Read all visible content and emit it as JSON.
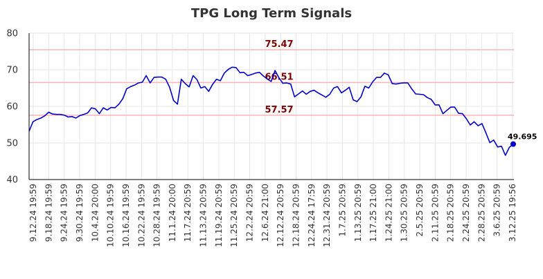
{
  "chart_data": {
    "type": "line",
    "title": "TPG Long Term Signals",
    "xlabel": "",
    "ylabel": "",
    "ylim": [
      40,
      80
    ],
    "yticks": [
      40,
      50,
      60,
      70,
      80
    ],
    "grid": true,
    "x_tick_labels": [
      "9.12.24 19:59",
      "9.18.24 19:59",
      "9.24.24 19:59",
      "9.30.24 19:59",
      "10.4.24 20:00",
      "10.10.24 19:59",
      "10.16.24 19:59",
      "10.22.24 19:59",
      "10.28.24 19:59",
      "11.1.24 20:00",
      "11.7.24 20:59",
      "11.13.24 20:59",
      "11.19.24 20:59",
      "11.25.24 20:59",
      "12.2.24 20:59",
      "12.6.24 21:00",
      "12.12.24 20:59",
      "12.18.24 20:59",
      "12.24.24 17:59",
      "12.31.24 20:59",
      "1.7.25 20:59",
      "1.13.25 20:59",
      "1.17.25 21:00",
      "1.24.25 21:00",
      "1.30.25 20:59",
      "2.5.25 20:59",
      "2.11.25 20:59",
      "2.18.25 20:59",
      "2.24.25 20:59",
      "2.28.25 20:59",
      "3.6.25 20:59",
      "3.12.25 19:56"
    ],
    "reference_lines": [
      {
        "value": 75.47,
        "label": "75.47",
        "color": "#ffb3b3"
      },
      {
        "value": 66.51,
        "label": "66.51",
        "color": "#ffb3b3"
      },
      {
        "value": 57.57,
        "label": "57.57",
        "color": "#ffb3b3"
      }
    ],
    "series": [
      {
        "color": "#0000cc",
        "values": [
          53.2,
          55.8,
          56.4,
          56.8,
          57.4,
          58.4,
          57.9,
          57.8,
          57.8,
          57.6,
          57.1,
          57.2,
          56.8,
          57.5,
          57.8,
          58.2,
          59.6,
          59.3,
          58.0,
          59.6,
          59.0,
          59.7,
          59.6,
          60.6,
          62.1,
          64.8,
          65.4,
          65.8,
          66.4,
          66.6,
          68.4,
          66.4,
          67.9,
          68.0,
          68.0,
          67.4,
          65.2,
          61.6,
          60.6,
          67.4,
          66.2,
          65.3,
          68.4,
          67.3,
          65.0,
          65.4,
          64.1,
          66.0,
          67.4,
          67.0,
          69.1,
          70.1,
          70.7,
          70.6,
          69.2,
          69.3,
          68.4,
          68.7,
          69.1,
          69.3,
          68.3,
          67.5,
          66.8,
          69.8,
          67.8,
          66.3,
          66.4,
          66.1,
          62.6,
          63.4,
          64.2,
          63.3,
          64.1,
          64.4,
          63.7,
          63.1,
          62.5,
          63.3,
          65.0,
          65.4,
          63.7,
          64.4,
          65.2,
          61.8,
          61.3,
          62.6,
          65.5,
          65.0,
          66.7,
          67.9,
          67.9,
          69.1,
          68.6,
          66.2,
          66.1,
          66.3,
          66.4,
          66.4,
          64.8,
          63.4,
          63.3,
          63.2,
          62.4,
          61.9,
          60.4,
          60.4,
          58.0,
          58.9,
          59.8,
          59.8,
          58.1,
          58.0,
          56.6,
          54.9,
          55.8,
          54.7,
          55.3,
          52.8,
          50.1,
          50.8,
          48.9,
          49.1,
          46.6,
          48.8,
          49.695
        ]
      }
    ],
    "last_value_label": "49.695"
  }
}
